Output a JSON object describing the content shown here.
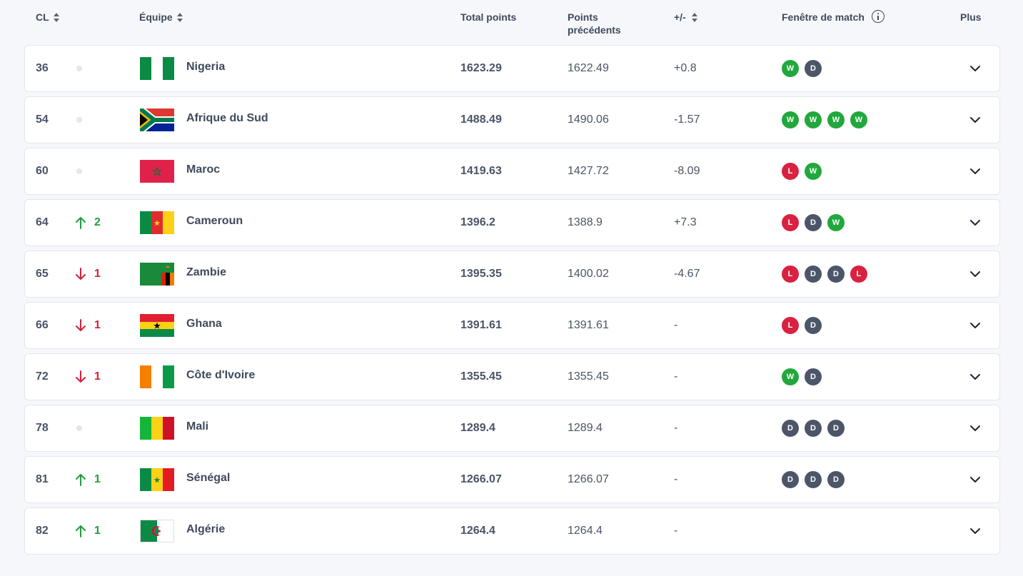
{
  "header": {
    "rank": "CL",
    "team": "Équipe",
    "total": "Total points",
    "previous": "Points précédents",
    "diff": "+/-",
    "form": "Fenêtre de match",
    "more": "Plus"
  },
  "colors": {
    "win": "#21a83c",
    "draw": "#4d5568",
    "loss": "#d92140",
    "up": "#1f9d3c",
    "down": "#d3223a"
  },
  "rows": [
    {
      "rank": "36",
      "move_dir": "none",
      "move": "",
      "team": "Nigeria",
      "flag": "nigeria",
      "total": "1623.29",
      "previous": "1622.49",
      "diff": "+0.8",
      "form": [
        "W",
        "D"
      ]
    },
    {
      "rank": "54",
      "move_dir": "none",
      "move": "",
      "team": "Afrique du Sud",
      "flag": "south-africa",
      "total": "1488.49",
      "previous": "1490.06",
      "diff": "-1.57",
      "form": [
        "W",
        "W",
        "W",
        "W"
      ]
    },
    {
      "rank": "60",
      "move_dir": "none",
      "move": "",
      "team": "Maroc",
      "flag": "morocco",
      "total": "1419.63",
      "previous": "1427.72",
      "diff": "-8.09",
      "form": [
        "L",
        "W"
      ]
    },
    {
      "rank": "64",
      "move_dir": "up",
      "move": "2",
      "team": "Cameroun",
      "flag": "cameroon",
      "total": "1396.2",
      "previous": "1388.9",
      "diff": "+7.3",
      "form": [
        "L",
        "D",
        "W"
      ]
    },
    {
      "rank": "65",
      "move_dir": "down",
      "move": "1",
      "team": "Zambie",
      "flag": "zambia",
      "total": "1395.35",
      "previous": "1400.02",
      "diff": "-4.67",
      "form": [
        "L",
        "D",
        "D",
        "L"
      ]
    },
    {
      "rank": "66",
      "move_dir": "down",
      "move": "1",
      "team": "Ghana",
      "flag": "ghana",
      "total": "1391.61",
      "previous": "1391.61",
      "diff": "-",
      "form": [
        "L",
        "D"
      ]
    },
    {
      "rank": "72",
      "move_dir": "down",
      "move": "1",
      "team": "Côte d'Ivoire",
      "flag": "ivory-coast",
      "total": "1355.45",
      "previous": "1355.45",
      "diff": "-",
      "form": [
        "W",
        "D"
      ]
    },
    {
      "rank": "78",
      "move_dir": "none",
      "move": "",
      "team": "Mali",
      "flag": "mali",
      "total": "1289.4",
      "previous": "1289.4",
      "diff": "-",
      "form": [
        "D",
        "D",
        "D"
      ]
    },
    {
      "rank": "81",
      "move_dir": "up",
      "move": "1",
      "team": "Sénégal",
      "flag": "senegal",
      "total": "1266.07",
      "previous": "1266.07",
      "diff": "-",
      "form": [
        "D",
        "D",
        "D"
      ]
    },
    {
      "rank": "82",
      "move_dir": "up",
      "move": "1",
      "team": "Algérie",
      "flag": "algeria",
      "total": "1264.4",
      "previous": "1264.4",
      "diff": "-",
      "form": []
    }
  ]
}
